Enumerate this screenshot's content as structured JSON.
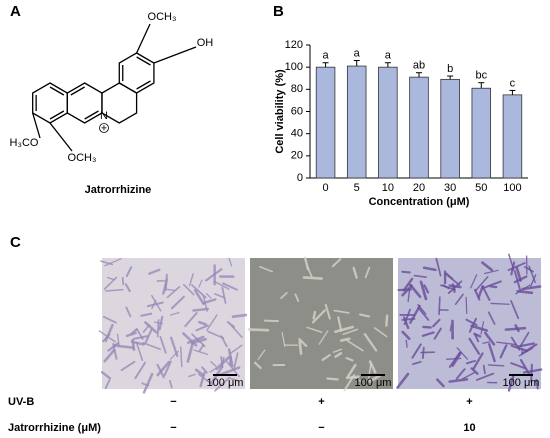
{
  "panels": {
    "a": "A",
    "b": "B",
    "c": "C"
  },
  "molecule": {
    "name": "Jatrorrhizine",
    "groups": [
      "OCH₃",
      "OH",
      "H₃CO",
      "OCH₃",
      "N",
      "+"
    ]
  },
  "chart_data": {
    "type": "bar",
    "xlabel": "Concentration (μM)",
    "ylabel": "Cell viability (%)",
    "categories": [
      "0",
      "5",
      "10",
      "20",
      "30",
      "50",
      "100"
    ],
    "values": [
      100,
      101,
      100,
      91,
      89,
      81,
      75
    ],
    "errors": [
      4,
      5,
      4,
      4,
      3,
      5,
      4
    ],
    "annotations": [
      "a",
      "a",
      "a",
      "ab",
      "b",
      "bc",
      "c"
    ],
    "color": "#aab8de",
    "ylim": [
      0,
      120
    ],
    "yticks": [
      0,
      20,
      40,
      60,
      80,
      100,
      120
    ]
  },
  "micrographs": {
    "scale_bars": [
      "100 μm",
      "100 μm",
      "100 μm"
    ]
  },
  "treatments": {
    "rows": [
      {
        "label": "UV-B",
        "values": [
          "−",
          "+",
          "+"
        ]
      },
      {
        "label": "Jatrorrhizine (μM)",
        "values": [
          "−",
          "−",
          "10"
        ]
      }
    ]
  }
}
